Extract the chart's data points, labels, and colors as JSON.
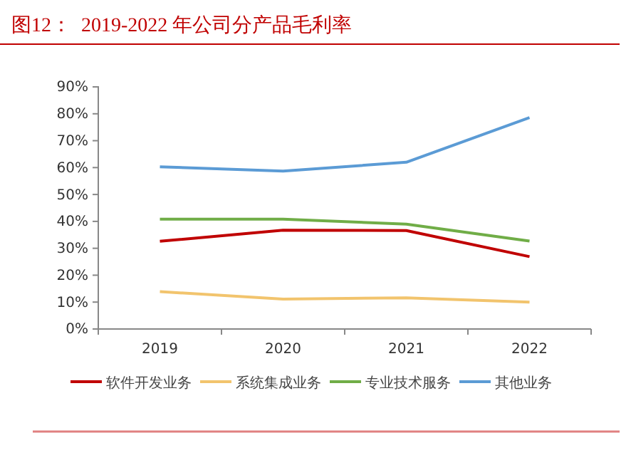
{
  "chart_data": {
    "type": "line",
    "title": "图12：  2019-2022 年公司分产品毛利率",
    "categories": [
      "2019",
      "2020",
      "2021",
      "2022"
    ],
    "series": [
      {
        "name": "软件开发业务",
        "color": "#c00000",
        "values": [
          32.6,
          36.7,
          36.6,
          26.9
        ]
      },
      {
        "name": "系统集成业务",
        "color": "#f2c46d",
        "values": [
          13.9,
          11.1,
          11.6,
          10.0
        ]
      },
      {
        "name": "专业技术服务",
        "color": "#70ad47",
        "values": [
          40.8,
          40.8,
          39.0,
          32.7
        ]
      },
      {
        "name": "其他业务",
        "color": "#5b9bd5",
        "values": [
          60.3,
          58.7,
          62.0,
          78.6
        ]
      }
    ],
    "ylim": [
      0,
      90
    ],
    "yticks": [
      {
        "value": 0,
        "label": "0%"
      },
      {
        "value": 10,
        "label": "10%"
      },
      {
        "value": 20,
        "label": "20%"
      },
      {
        "value": 30,
        "label": "30%"
      },
      {
        "value": 40,
        "label": "40%"
      },
      {
        "value": 50,
        "label": "50%"
      },
      {
        "value": 60,
        "label": "60%"
      },
      {
        "value": 70,
        "label": "70%"
      },
      {
        "value": 80,
        "label": "80%"
      },
      {
        "value": 90,
        "label": "90%"
      }
    ],
    "grid": false,
    "legend": "bottom",
    "marker": "none",
    "line_style": "solid"
  }
}
